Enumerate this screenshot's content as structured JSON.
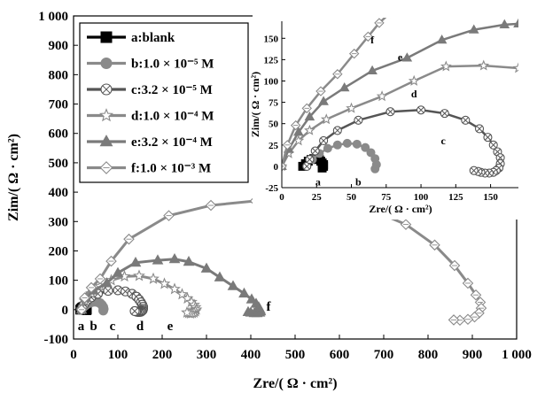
{
  "chart_data": [
    {
      "type": "line",
      "x_axis": {
        "label_prefix": "Zre",
        "label_unit": "/( Ω · cm²)",
        "range": [
          0,
          1000
        ],
        "ticks": [
          "0",
          "100",
          "200",
          "300",
          "400",
          "500",
          "600",
          "700",
          "800",
          "900",
          "1 000"
        ]
      },
      "y_axis": {
        "label_prefix": "Zim",
        "label_unit": "/( Ω · cm²)",
        "range": [
          -100,
          1000
        ],
        "ticks": [
          "-100",
          "0",
          "100",
          "200",
          "300",
          "400",
          "500",
          "600",
          "700",
          "800",
          "900",
          "1 000"
        ]
      },
      "legend": {
        "placement": "top-left",
        "entries": [
          {
            "key": "a",
            "label": "a:blank",
            "marker": "square",
            "color": "#000000"
          },
          {
            "key": "b",
            "label": "b:1.0 × 10⁻⁵ M",
            "marker": "circle",
            "color": "#8a8a8a"
          },
          {
            "key": "c",
            "label": "c:3.2 × 10⁻⁵ M",
            "marker": "circle-x",
            "color": "#555555"
          },
          {
            "key": "d",
            "label": "d:1.0 × 10⁻⁴ M",
            "marker": "star",
            "color": "#8a8a8a"
          },
          {
            "key": "e",
            "label": "e:3.2 × 10⁻⁴ M",
            "marker": "triangle",
            "color": "#7a7a7a"
          },
          {
            "key": "f",
            "label": "f:1.0 × 10⁻³ M",
            "marker": "diamond",
            "color": "#8a8a8a"
          }
        ]
      },
      "series": [
        {
          "key": "a",
          "label": "a",
          "x": [
            15,
            17,
            19,
            21,
            23,
            25,
            27,
            28,
            29,
            30,
            30,
            29
          ],
          "y": [
            0,
            3,
            6,
            8,
            9,
            9,
            8,
            6,
            4,
            2,
            0,
            -2
          ],
          "label_pos": [
            17,
            -55
          ]
        },
        {
          "key": "b",
          "label": "b",
          "x": [
            18,
            22,
            27,
            33,
            40,
            47,
            54,
            60,
            64,
            67,
            68,
            67
          ],
          "y": [
            0,
            8,
            15,
            21,
            25,
            27,
            26,
            22,
            16,
            9,
            2,
            -3
          ],
          "label_pos": [
            45,
            -55
          ]
        },
        {
          "key": "c",
          "label": "c",
          "x": [
            18,
            20,
            24,
            30,
            40,
            55,
            78,
            100,
            117,
            132,
            142,
            148,
            152,
            155,
            157,
            157,
            156,
            154,
            152,
            149,
            146,
            143,
            141,
            138
          ],
          "y": [
            0,
            8,
            18,
            30,
            42,
            54,
            64,
            66,
            62,
            54,
            44,
            34,
            25,
            17,
            10,
            3,
            -2,
            -5,
            -7,
            -8,
            -8,
            -7,
            -6,
            -5
          ],
          "label_pos": [
            88,
            -55
          ]
        },
        {
          "key": "d",
          "label": "d",
          "x": [
            18,
            25,
            40,
            60,
            85,
            115,
            148,
            180,
            205,
            228,
            245,
            257,
            266,
            272,
            275,
            277,
            275,
            272,
            268,
            264,
            260,
            256
          ],
          "y": [
            0,
            30,
            55,
            80,
            100,
            113,
            115,
            105,
            88,
            70,
            52,
            38,
            26,
            16,
            8,
            0,
            -6,
            -10,
            -12,
            -13,
            -12,
            -10
          ],
          "label_pos": [
            150,
            -55
          ]
        },
        {
          "key": "e",
          "label": "e",
          "x": [
            18,
            28,
            45,
            75,
            100,
            140,
            190,
            228,
            260,
            300,
            330,
            360,
            385,
            402,
            412,
            418,
            421,
            422,
            420,
            414,
            408,
            400,
            394
          ],
          "y": [
            0,
            40,
            65,
            90,
            125,
            160,
            168,
            172,
            163,
            140,
            110,
            80,
            55,
            35,
            20,
            8,
            0,
            -6,
            -10,
            -12,
            -12,
            -10,
            -8
          ],
          "label_pos": [
            218,
            -55
          ]
        },
        {
          "key": "f",
          "label": "f",
          "x": [
            18,
            25,
            40,
            60,
            85,
            125,
            215,
            310,
            410,
            520,
            600,
            680,
            750,
            815,
            860,
            890,
            908,
            918,
            920,
            915,
            905,
            890,
            872,
            858
          ],
          "y": [
            0,
            40,
            75,
            105,
            165,
            240,
            320,
            355,
            370,
            368,
            358,
            335,
            290,
            220,
            150,
            90,
            50,
            25,
            5,
            -12,
            -25,
            -33,
            -36,
            -35
          ],
          "label_pos": [
            440,
            12
          ]
        }
      ]
    },
    {
      "type": "line",
      "placement": "top-right",
      "x_axis": {
        "label_prefix": "Zre",
        "label_unit": "/( Ω · cm²)",
        "range": [
          0,
          170
        ],
        "ticks": [
          "0",
          "25",
          "50",
          "75",
          "100",
          "125",
          "150"
        ]
      },
      "y_axis": {
        "label_prefix": "Zim",
        "label_unit": "/( Ω · cm²)",
        "range": [
          -25,
          170
        ],
        "ticks": [
          "-25",
          "0",
          "25",
          "50",
          "75",
          "100",
          "125",
          "150"
        ]
      },
      "series": [
        {
          "key": "a",
          "label": "a",
          "x": [
            15,
            17,
            19,
            21,
            23,
            25,
            27,
            28,
            29,
            30,
            30,
            29
          ],
          "y": [
            0,
            3,
            6,
            8,
            9,
            9,
            8,
            6,
            4,
            2,
            0,
            -2
          ],
          "label_pos": [
            26,
            -18
          ]
        },
        {
          "key": "b",
          "label": "b",
          "x": [
            18,
            22,
            27,
            33,
            40,
            47,
            54,
            60,
            64,
            67,
            68,
            67
          ],
          "y": [
            0,
            8,
            15,
            21,
            25,
            27,
            26,
            22,
            16,
            9,
            2,
            -3
          ],
          "label_pos": [
            55,
            -18
          ]
        },
        {
          "key": "c",
          "label": "c",
          "x": [
            18,
            20,
            24,
            30,
            40,
            55,
            78,
            100,
            117,
            132,
            142,
            148,
            152,
            155,
            157,
            157,
            156,
            154,
            152,
            149,
            146,
            143,
            141,
            138
          ],
          "y": [
            0,
            8,
            18,
            30,
            42,
            54,
            64,
            66,
            62,
            54,
            44,
            34,
            25,
            17,
            10,
            3,
            -2,
            -5,
            -7,
            -8,
            -8,
            -7,
            -6,
            -5
          ],
          "label_pos": [
            116,
            30
          ]
        },
        {
          "key": "d",
          "label": "d",
          "x": [
            0,
            5,
            12,
            20,
            32,
            50,
            72,
            95,
            118,
            145,
            170
          ],
          "y": [
            0,
            15,
            30,
            42,
            55,
            68,
            82,
            100,
            117,
            118,
            115
          ],
          "label_pos": [
            95,
            85
          ]
        },
        {
          "key": "e",
          "label": "e",
          "x": [
            0,
            5,
            12,
            20,
            30,
            45,
            65,
            90,
            115,
            138,
            160,
            170
          ],
          "y": [
            0,
            20,
            40,
            58,
            76,
            92,
            112,
            127,
            148,
            160,
            166,
            167
          ],
          "label_pos": [
            85,
            128
          ]
        },
        {
          "key": "f",
          "label": "f",
          "x": [
            0,
            4,
            10,
            18,
            28,
            40,
            52,
            62,
            70,
            78
          ],
          "y": [
            0,
            25,
            48,
            68,
            88,
            108,
            132,
            152,
            168,
            180
          ],
          "label_pos": [
            65,
            148
          ]
        }
      ]
    }
  ]
}
